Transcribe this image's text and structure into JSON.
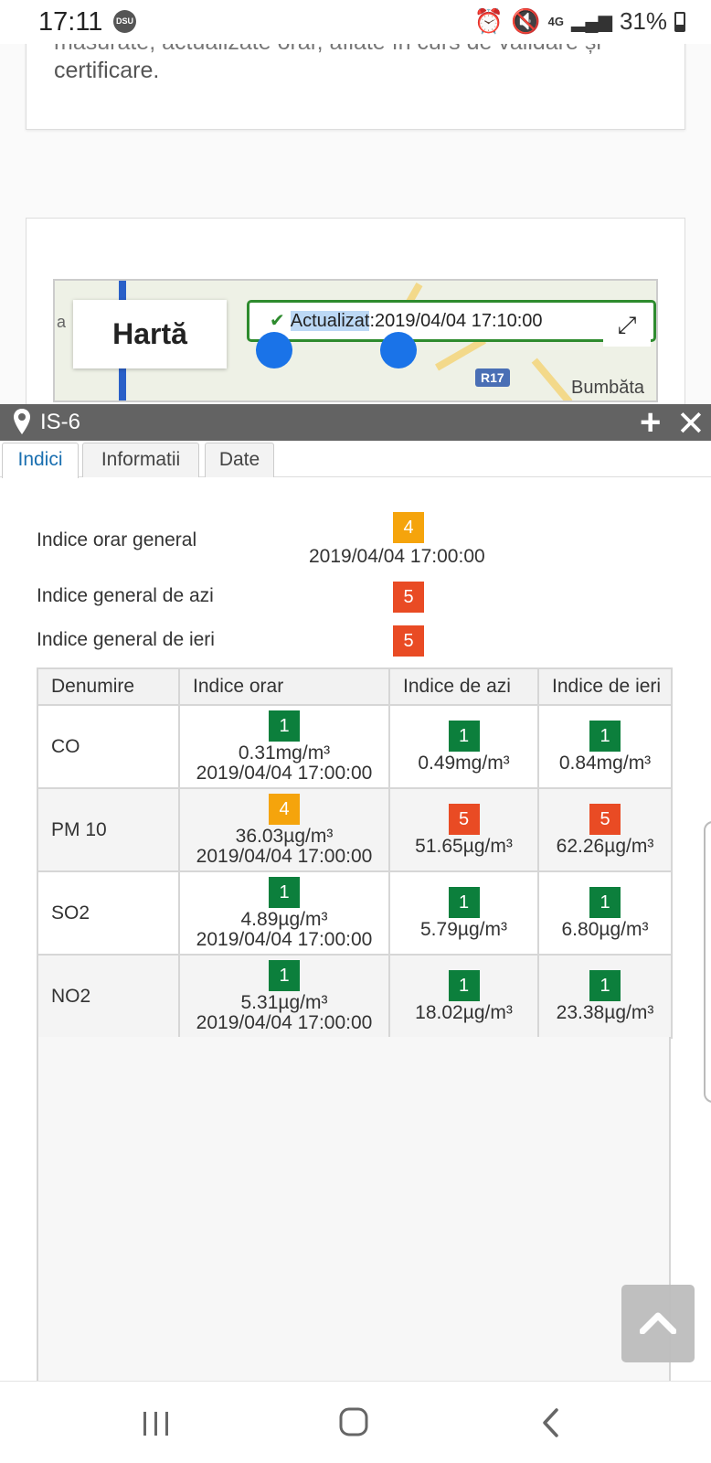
{
  "status_bar": {
    "time": "17:11",
    "dsu": "DSU",
    "network": "4G",
    "battery": "31%"
  },
  "page": {
    "partial_text_line1": "măsurate, actualizate orar, aflate în curs de validare și",
    "partial_text_line2": "certificare."
  },
  "map": {
    "mode_label": "Hartă",
    "edge_label": "a",
    "road_label": "R17",
    "place_label": "Bumbăta",
    "updated_label": "Actualizat",
    "updated_value": ":2019/04/04 17:10:00"
  },
  "panel": {
    "station": "IS-6",
    "tabs": [
      {
        "label": "Indici"
      },
      {
        "label": "Informatii"
      },
      {
        "label": "Date"
      }
    ],
    "summary": {
      "hourly_label": "Indice orar general",
      "hourly_value": "4",
      "hourly_time": "2019/04/04 17:00:00",
      "today_label": "Indice general de azi",
      "today_value": "5",
      "yesterday_label": "Indice general de ieri",
      "yesterday_value": "5"
    },
    "table": {
      "headers": [
        "Denumire",
        "Indice orar",
        "Indice de azi",
        "Indice de ieri"
      ],
      "rows": [
        {
          "name": "CO",
          "hourly_idx": "1",
          "hourly_val": "0.31mg/m³",
          "hourly_time": "2019/04/04 17:00:00",
          "today_idx": "1",
          "today_val": "0.49mg/m³",
          "yest_idx": "1",
          "yest_val": "0.84mg/m³"
        },
        {
          "name": "PM 10",
          "hourly_idx": "4",
          "hourly_val": "36.03µg/m³",
          "hourly_time": "2019/04/04 17:00:00",
          "today_idx": "5",
          "today_val": "51.65µg/m³",
          "yest_idx": "5",
          "yest_val": "62.26µg/m³"
        },
        {
          "name": "SO2",
          "hourly_idx": "1",
          "hourly_val": "4.89µg/m³",
          "hourly_time": "2019/04/04 17:00:00",
          "today_idx": "1",
          "today_val": "5.79µg/m³",
          "yest_idx": "1",
          "yest_val": "6.80µg/m³"
        },
        {
          "name": "NO2",
          "hourly_idx": "1",
          "hourly_val": "5.31µg/m³",
          "hourly_time": "2019/04/04 17:00:00",
          "today_idx": "1",
          "today_val": "18.02µg/m³",
          "yest_idx": "1",
          "yest_val": "23.38µg/m³"
        }
      ]
    }
  },
  "colors": {
    "index_1": "#0c7f3c",
    "index_4": "#f5a40c",
    "index_5": "#e94b24",
    "header_bar": "#636363",
    "active_tab": "#1a6fb0"
  },
  "icons": {
    "pin": "map-pin-icon",
    "plus": "plus-icon",
    "close": "close-icon",
    "expand": "expand-icon",
    "check": "check-icon",
    "scroll_top": "chevron-up-icon",
    "nav_recent": "recent-apps-icon",
    "nav_home": "home-icon",
    "nav_back": "back-icon"
  }
}
